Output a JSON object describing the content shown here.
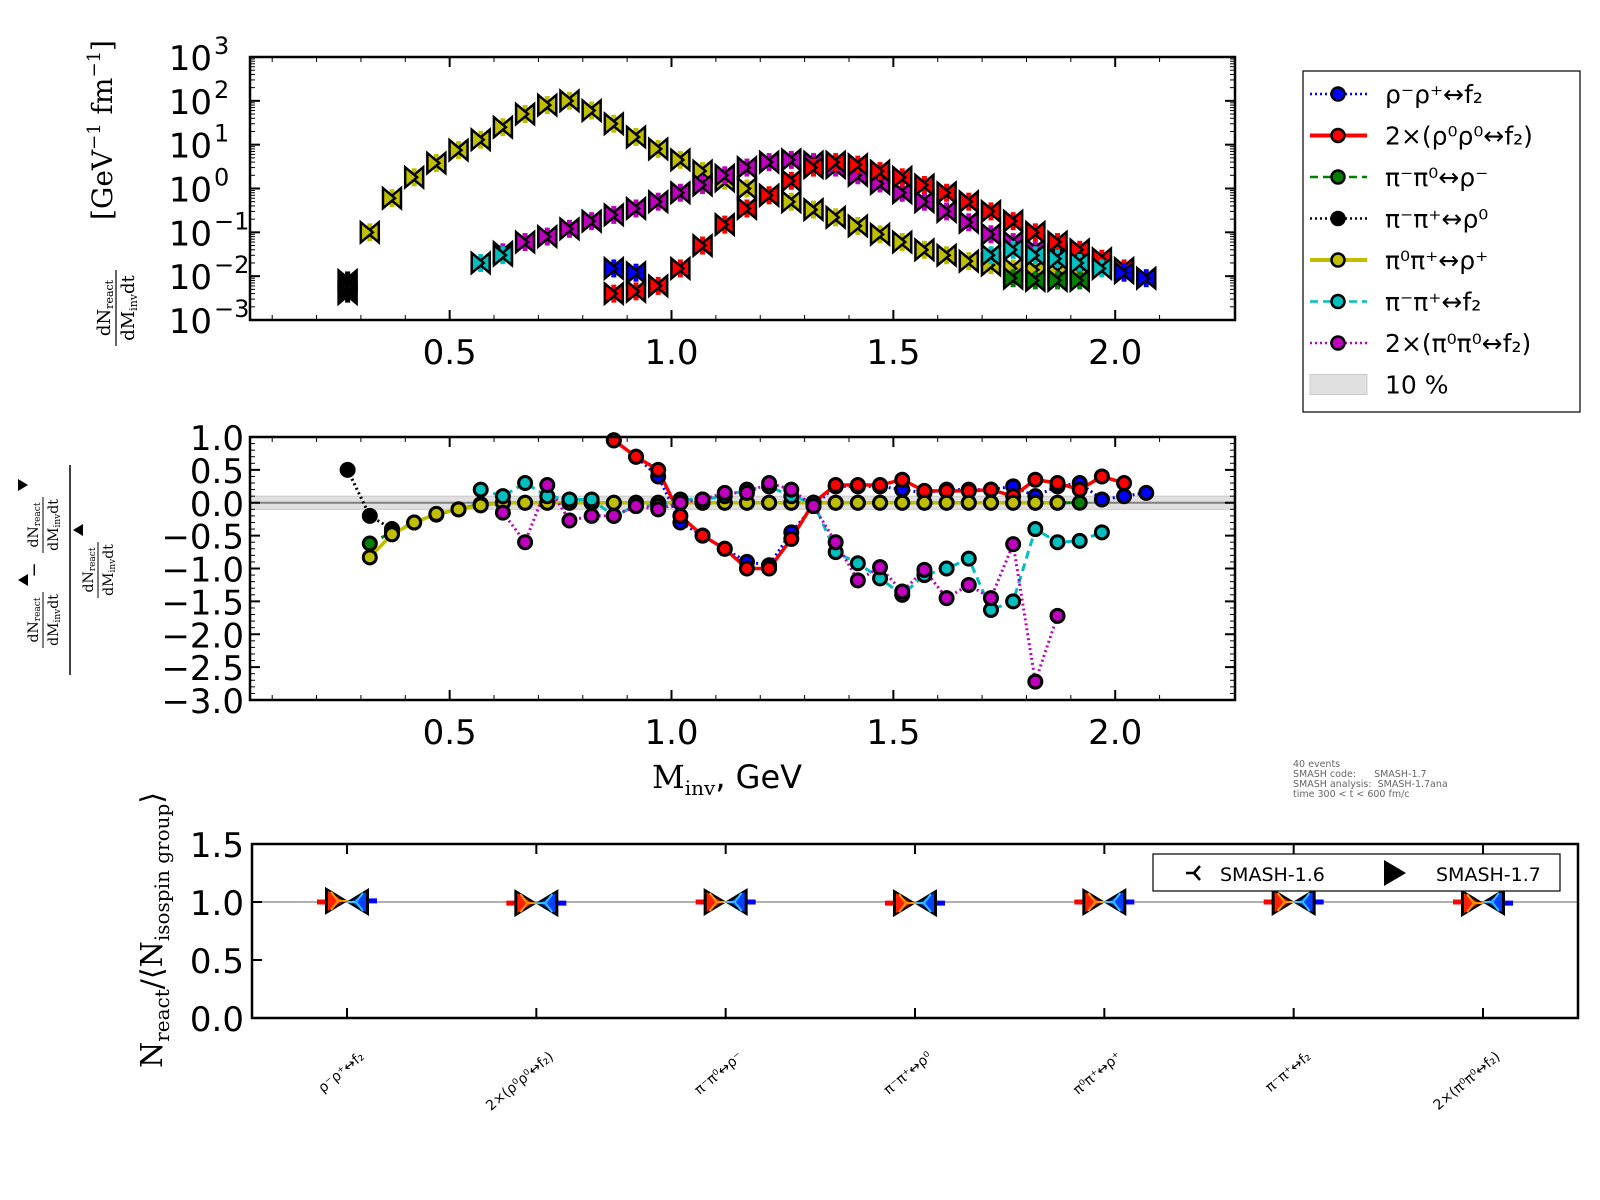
{
  "chart_data": [
    {
      "type": "scatter",
      "panel": "top",
      "yscale": "log",
      "xlim": [
        0.05,
        2.27
      ],
      "ylim": [
        0.001,
        1000
      ],
      "xticks": [
        0.5,
        1.0,
        1.5,
        2.0
      ],
      "xtick_labels": [
        "0.5",
        "1.0",
        "1.5",
        "2.0"
      ],
      "yticks": [
        0.001,
        0.01,
        0.1,
        1,
        10,
        100,
        1000
      ],
      "ytick_labels": [
        {
          "base": "10",
          "exp": "−3"
        },
        {
          "base": "10",
          "exp": "−2"
        },
        {
          "base": "10",
          "exp": "−1"
        },
        {
          "base": "10",
          "exp": "0"
        },
        {
          "base": "10",
          "exp": "1"
        },
        {
          "base": "10",
          "exp": "2"
        },
        {
          "base": "10",
          "exp": "3"
        }
      ],
      "ylabel": {
        "frac_num": "dN",
        "frac_num_sub": "react",
        "frac_den": "dM",
        "frac_den_sub": "inv",
        "frac_den_tail": "dt",
        "units": "[GeV",
        "units_exp1": "−1",
        "units_mid": " fm",
        "units_exp2": "−1",
        "units_close": "]"
      },
      "markers": "left-triangle = SMASH-1.6-like, right-triangle = SMASH-1.7",
      "series": [
        {
          "name": "π⁰π⁺↔ρ⁺",
          "color": "#bfbf00",
          "x": [
            0.32,
            0.37,
            0.42,
            0.47,
            0.52,
            0.57,
            0.62,
            0.67,
            0.72,
            0.77,
            0.82,
            0.87,
            0.92,
            0.97,
            1.02,
            1.07,
            1.12,
            1.17,
            1.22,
            1.27,
            1.32,
            1.37,
            1.42,
            1.47,
            1.52,
            1.57,
            1.62,
            1.67,
            1.72,
            1.77,
            1.82,
            1.87,
            1.92
          ],
          "y": [
            0.1,
            0.6,
            1.8,
            3.8,
            7.5,
            13,
            25,
            50,
            80,
            100,
            60,
            30,
            15,
            8,
            4.5,
            2.5,
            1.5,
            1.0,
            0.7,
            0.5,
            0.33,
            0.22,
            0.14,
            0.09,
            0.06,
            0.04,
            0.03,
            0.022,
            0.018,
            0.015,
            0.014,
            0.012,
            0.011
          ]
        },
        {
          "name": "2×(π⁰π⁰↔f₂)",
          "color": "#bf00bf",
          "x": [
            0.62,
            0.67,
            0.72,
            0.77,
            0.82,
            0.87,
            0.92,
            0.97,
            1.02,
            1.07,
            1.12,
            1.17,
            1.22,
            1.27,
            1.32,
            1.37,
            1.42,
            1.47,
            1.52,
            1.57,
            1.62,
            1.67,
            1.72,
            1.77,
            1.82,
            1.87
          ],
          "y": [
            0.035,
            0.06,
            0.08,
            0.12,
            0.18,
            0.25,
            0.35,
            0.5,
            0.8,
            1.2,
            2.0,
            3.0,
            4.0,
            4.5,
            4.0,
            3.0,
            2.0,
            1.3,
            0.8,
            0.5,
            0.3,
            0.17,
            0.09,
            0.06,
            0.04,
            0.03
          ]
        },
        {
          "name": "2×(ρ⁰ρ⁰↔f₂)",
          "color": "#ff0000",
          "x": [
            0.87,
            0.92,
            0.97,
            1.02,
            1.07,
            1.12,
            1.17,
            1.22,
            1.27,
            1.32,
            1.37,
            1.42,
            1.47,
            1.52,
            1.57,
            1.62,
            1.67,
            1.72,
            1.77,
            1.82,
            1.87,
            1.92,
            1.97,
            2.02
          ],
          "y": [
            0.004,
            0.0045,
            0.006,
            0.015,
            0.05,
            0.15,
            0.35,
            0.7,
            1.5,
            3.0,
            4.0,
            3.5,
            2.5,
            1.8,
            1.2,
            0.8,
            0.5,
            0.3,
            0.18,
            0.1,
            0.06,
            0.04,
            0.025,
            0.015
          ]
        },
        {
          "name": "ρ⁻ρ⁺↔f₂",
          "color": "#0000ff",
          "x": [
            0.87,
            0.92,
            2.02,
            2.07
          ],
          "y": [
            0.015,
            0.012,
            0.012,
            0.009
          ]
        },
        {
          "name": "π⁻π⁺↔f₂",
          "color": "#00bfbf",
          "x": [
            0.57,
            0.62,
            1.72,
            1.77,
            1.82,
            1.87,
            1.92,
            1.97
          ],
          "y": [
            0.02,
            0.03,
            0.03,
            0.04,
            0.03,
            0.025,
            0.02,
            0.015
          ]
        },
        {
          "name": "π⁻π⁰↔ρ⁻",
          "color": "#007f00",
          "x": [
            1.77,
            1.82,
            1.87,
            1.92
          ],
          "y": [
            0.009,
            0.008,
            0.008,
            0.008
          ]
        },
        {
          "name": "π⁻π⁺↔ρ⁰",
          "color": "#000000",
          "x": [
            0.27,
            0.27
          ],
          "y": [
            0.008,
            0.004
          ]
        }
      ]
    },
    {
      "type": "line",
      "panel": "middle",
      "xlim": [
        0.05,
        2.27
      ],
      "ylim": [
        -3.0,
        1.0
      ],
      "xticks": [
        0.5,
        1.0,
        1.5,
        2.0
      ],
      "xtick_labels": [
        "0.5",
        "1.0",
        "1.5",
        "2.0"
      ],
      "yticks": [
        1.0,
        0.5,
        0.0,
        -0.5,
        -1.0,
        -1.5,
        -2.0,
        -2.5,
        -3.0
      ],
      "ytick_labels": [
        "1.0",
        "0.5",
        "0.0",
        "−0.5",
        "−1.0",
        "−1.5",
        "−2.0",
        "−2.5",
        "−3.0"
      ],
      "xlabel": {
        "main": "M",
        "sub": "inv",
        "tail": ", GeV"
      },
      "band": {
        "label": "10 %",
        "range": [
          -0.1,
          0.1
        ]
      },
      "series": [
        {
          "name": "ρ⁻ρ⁺↔f₂",
          "color": "#0000ff",
          "style": "dotted",
          "x": [
            0.87,
            0.92,
            0.97,
            1.02,
            1.07,
            1.12,
            1.17,
            1.22,
            1.27,
            1.32,
            1.37,
            1.42,
            1.47,
            1.52,
            1.57,
            1.62,
            1.67,
            1.72,
            1.77,
            1.82,
            1.87,
            1.92,
            1.97,
            2.02,
            2.07
          ],
          "y": [
            0.95,
            0.7,
            0.4,
            -0.3,
            -0.5,
            -0.7,
            -0.9,
            -0.95,
            -0.45,
            -0.05,
            0.25,
            0.25,
            0.25,
            0.2,
            0.15,
            0.2,
            0.2,
            0.2,
            0.25,
            0.1,
            0.25,
            0.3,
            0.05,
            0.1,
            0.15
          ]
        },
        {
          "name": "2×(ρ⁰ρ⁰↔f₂)",
          "color": "#ff0000",
          "style": "solid",
          "x": [
            0.87,
            0.92,
            0.97,
            1.02,
            1.07,
            1.12,
            1.17,
            1.22,
            1.27,
            1.32,
            1.37,
            1.42,
            1.47,
            1.52,
            1.57,
            1.62,
            1.67,
            1.72,
            1.77,
            1.82,
            1.87,
            1.92,
            1.97,
            2.02
          ],
          "y": [
            0.95,
            0.7,
            0.5,
            -0.2,
            -0.5,
            -0.7,
            -1.0,
            -1.0,
            -0.55,
            0.0,
            0.27,
            0.27,
            0.27,
            0.35,
            0.18,
            0.18,
            0.18,
            0.2,
            0.1,
            0.35,
            0.3,
            0.2,
            0.4,
            0.3
          ]
        },
        {
          "name": "π⁻π⁰↔ρ⁻",
          "color": "#007f00",
          "style": "dashed",
          "x": [
            0.32,
            0.37,
            0.42,
            0.47,
            0.52,
            0.57,
            0.62,
            0.67,
            0.72,
            0.77,
            0.82,
            0.87,
            0.92,
            0.97,
            1.02,
            1.07,
            1.12,
            1.17,
            1.22,
            1.27,
            1.32,
            1.37,
            1.42,
            1.47,
            1.52,
            1.57,
            1.62,
            1.67,
            1.72,
            1.77,
            1.82,
            1.87,
            1.92
          ],
          "y": [
            -0.62,
            -0.45,
            -0.3,
            -0.18,
            -0.1,
            -0.02,
            0.0,
            0.0,
            0.0,
            0.0,
            0.0,
            0.0,
            0.0,
            0.0,
            0.0,
            0.0,
            0.0,
            0.0,
            0.0,
            0.0,
            0.0,
            0.0,
            0.0,
            0.0,
            0.0,
            0.0,
            0.0,
            0.0,
            0.0,
            0.0,
            0.0,
            0.0,
            0.0
          ]
        },
        {
          "name": "π⁻π⁺↔ρ⁰",
          "color": "#000000",
          "style": "dotted",
          "x": [
            0.27,
            0.32,
            0.37
          ],
          "y": [
            0.5,
            -0.2,
            -0.4
          ]
        },
        {
          "name": "π⁰π⁺↔ρ⁺",
          "color": "#bfbf00",
          "style": "solid",
          "x": [
            0.32,
            0.37,
            0.42,
            0.47,
            0.52,
            0.57,
            0.62,
            0.67,
            0.72,
            0.77,
            0.82,
            0.87,
            0.92,
            0.97,
            1.02,
            1.07,
            1.12,
            1.17,
            1.22,
            1.27,
            1.32,
            1.37,
            1.42,
            1.47,
            1.52,
            1.57,
            1.62,
            1.67,
            1.72,
            1.77,
            1.82,
            1.87
          ],
          "y": [
            -0.83,
            -0.48,
            -0.3,
            -0.17,
            -0.1,
            -0.04,
            0.0,
            0.0,
            0.0,
            0.0,
            0.0,
            0.0,
            0.0,
            0.0,
            0.0,
            0.0,
            0.0,
            0.0,
            0.0,
            0.0,
            0.0,
            0.0,
            0.0,
            0.0,
            0.0,
            0.0,
            0.0,
            0.0,
            0.0,
            0.0,
            0.0,
            0.0
          ]
        },
        {
          "name": "π⁻π⁺↔f₂",
          "color": "#00bfbf",
          "style": "dashed",
          "x": [
            0.57,
            0.62,
            0.67,
            0.72,
            0.77,
            0.82,
            0.87,
            0.92,
            0.97,
            1.02,
            1.07,
            1.12,
            1.17,
            1.22,
            1.27,
            1.32,
            1.37,
            1.42,
            1.47,
            1.52,
            1.57,
            1.62,
            1.67,
            1.72,
            1.77,
            1.82,
            1.87,
            1.92,
            1.97
          ],
          "y": [
            0.2,
            0.1,
            0.3,
            0.1,
            0.05,
            0.05,
            -0.2,
            -0.05,
            -0.05,
            0.05,
            0.05,
            0.1,
            0.2,
            0.25,
            0.1,
            0.0,
            -0.75,
            -0.92,
            -1.15,
            -1.4,
            -1.1,
            -1.0,
            -0.85,
            -1.63,
            -1.5,
            -0.4,
            -0.6,
            -0.58,
            -0.45
          ]
        },
        {
          "name": "2×(π⁰π⁰↔f₂)",
          "color": "#bf00bf",
          "style": "dotted",
          "x": [
            0.62,
            0.67,
            0.72,
            0.77,
            0.82,
            0.87,
            0.92,
            0.97,
            1.02,
            1.07,
            1.12,
            1.17,
            1.22,
            1.27,
            1.32,
            1.37,
            1.42,
            1.47,
            1.52,
            1.57,
            1.62,
            1.67,
            1.72,
            1.77,
            1.82,
            1.87
          ],
          "y": [
            -0.15,
            -0.6,
            0.27,
            -0.27,
            -0.2,
            -0.2,
            -0.05,
            -0.1,
            0.0,
            0.05,
            0.15,
            0.15,
            0.3,
            0.2,
            -0.05,
            -0.6,
            -1.18,
            -0.98,
            -1.35,
            -1.02,
            -1.45,
            -1.25,
            -1.45,
            -0.63,
            -2.72,
            -1.72
          ]
        }
      ]
    },
    {
      "type": "scatter",
      "panel": "bottom",
      "ylim": [
        0.0,
        1.5
      ],
      "yticks": [
        0.0,
        0.5,
        1.0,
        1.5
      ],
      "ytick_labels": [
        "0.0",
        "0.5",
        "1.0",
        "1.5"
      ],
      "ylabel": {
        "main": "N",
        "sub": "react",
        "mid": "/⟨N",
        "sub2": "isospin group",
        "close": "⟩"
      },
      "categories": [
        "ρ⁻ρ⁺↔f₂",
        "2×(ρ⁰ρ⁰↔f₂)",
        "π⁻π⁰↔ρ⁻",
        "π⁻π⁺↔ρ⁰",
        "π⁰π⁺↔ρ⁺",
        "π⁻π⁺↔f₂",
        "2×(π⁰π⁰↔f₂)"
      ],
      "reference_line": 1.0,
      "series": [
        {
          "name": "SMASH-1.6",
          "marker": "tri-left",
          "values": [
            1.0,
            0.99,
            1.0,
            0.99,
            1.0,
            1.0,
            1.0
          ]
        },
        {
          "name": "SMASH-1.7",
          "marker": "triangle-right",
          "values": [
            1.01,
            0.99,
            1.0,
            0.99,
            1.0,
            1.0,
            0.99
          ]
        }
      ],
      "legend": {
        "placement": "top-right",
        "entries": [
          {
            "label": "SMASH-1.6",
            "icon": "tri-left-marker-icon"
          },
          {
            "label": "SMASH-1.7",
            "icon": "triangle-right-marker-icon"
          }
        ]
      }
    }
  ],
  "legend": {
    "placement": "right",
    "entries": [
      {
        "label": "ρ⁻ρ⁺↔f₂",
        "color": "#0000ff",
        "style": "dotted",
        "marker": true
      },
      {
        "label": "2×(ρ⁰ρ⁰↔f₂)",
        "color": "#ff0000",
        "style": "solid",
        "marker": true
      },
      {
        "label": "π⁻π⁰↔ρ⁻",
        "color": "#007f00",
        "style": "dashed",
        "marker": true
      },
      {
        "label": "π⁻π⁺↔ρ⁰",
        "color": "#000000",
        "style": "dotted",
        "marker": true
      },
      {
        "label": "π⁰π⁺↔ρ⁺",
        "color": "#bfbf00",
        "style": "solid",
        "marker": true
      },
      {
        "label": "π⁻π⁺↔f₂",
        "color": "#00bfbf",
        "style": "dashed",
        "marker": true
      },
      {
        "label": "2×(π⁰π⁰↔f₂)",
        "color": "#bf00bf",
        "style": "dotted",
        "marker": true
      },
      {
        "label": "10 %",
        "color": "#e0e0e0",
        "style": "band",
        "marker": false
      }
    ]
  },
  "info": {
    "lines": [
      "40 events",
      "SMASH code:      SMASH-1.7",
      "SMASH analysis:  SMASH-1.7ana",
      "time 300 < t < 600 fm/c"
    ]
  }
}
